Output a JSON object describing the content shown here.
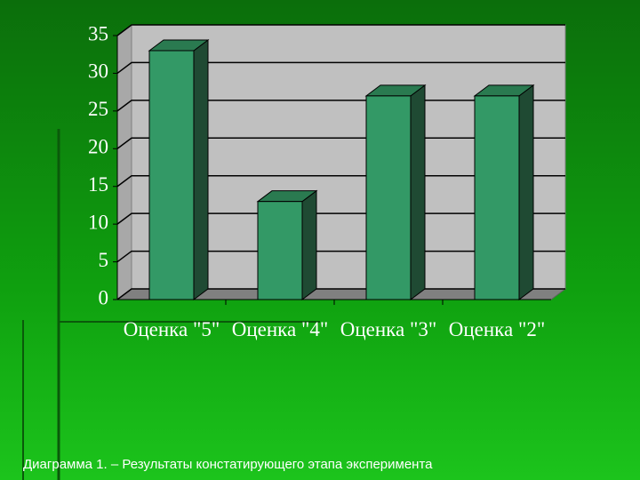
{
  "chart_data": {
    "type": "bar3d",
    "categories": [
      "Оценка \"5\"",
      "Оценка \"4\"",
      "Оценка \"3\"",
      "Оценка \"2\""
    ],
    "values": [
      33,
      13,
      27,
      27
    ],
    "color": "#339966",
    "ylim": [
      0,
      35
    ],
    "yticks": [
      0,
      5,
      10,
      15,
      20,
      25,
      30,
      35
    ],
    "grid": true
  },
  "caption": "Диаграмма 1. – Результаты констатирующего этапа эксперимента"
}
